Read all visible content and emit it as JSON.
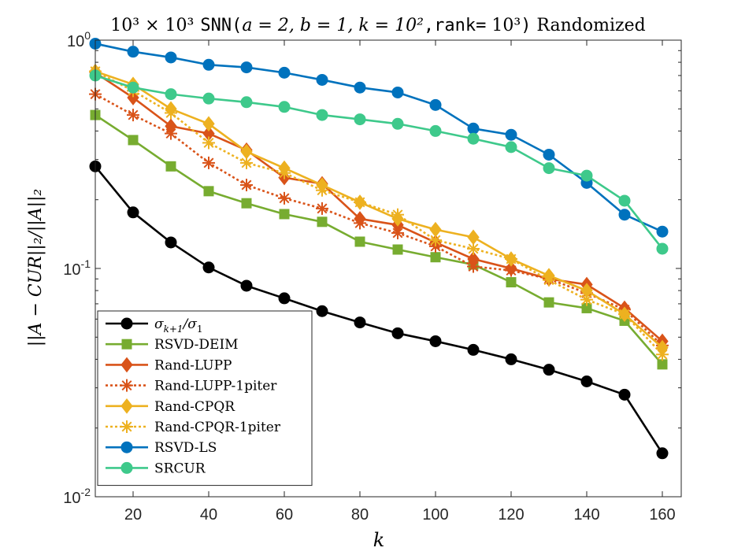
{
  "chart_data": {
    "type": "line",
    "title_parts": {
      "prefix": "10³ × 10³",
      "mono1": "SNN(",
      "math": "a = 2, b = 1, k = 10²",
      "mono2": ",rank=",
      "math2": " 10³",
      "mono3": ")",
      "suffix": " Randomized"
    },
    "xlabel": "k",
    "ylabel": "||A − CUR||₂/||A||₂",
    "x": [
      10,
      20,
      30,
      40,
      50,
      60,
      70,
      80,
      90,
      100,
      110,
      120,
      130,
      140,
      150,
      160
    ],
    "xlim": [
      10,
      165
    ],
    "ylim": [
      0.01,
      1
    ],
    "yscale": "log",
    "xticks": [
      20,
      40,
      60,
      80,
      100,
      120,
      140,
      160
    ],
    "yticks": [
      {
        "value": 1,
        "base": "10",
        "exp": "0"
      },
      {
        "value": 0.1,
        "base": "10",
        "exp": "-1"
      },
      {
        "value": 0.01,
        "base": "10",
        "exp": "-2"
      }
    ],
    "legend_position": "bottom-left",
    "series": [
      {
        "name": "σk+1/σ1",
        "name_main": "σ",
        "name_sub1": "k+1",
        "name_mid": "/σ",
        "name_sub2": "1",
        "color": "#000000",
        "dashed": false,
        "marker": "circle",
        "values": [
          0.28,
          0.176,
          0.13,
          0.101,
          0.084,
          0.074,
          0.065,
          0.058,
          0.052,
          0.048,
          0.044,
          0.04,
          0.036,
          0.032,
          0.028,
          0.0155
        ]
      },
      {
        "name": "RSVD-DEIM",
        "color": "#77AC30",
        "dashed": false,
        "marker": "square",
        "values": [
          0.47,
          0.365,
          0.28,
          0.218,
          0.193,
          0.173,
          0.16,
          0.131,
          0.121,
          0.112,
          0.104,
          0.087,
          0.071,
          0.067,
          0.059,
          0.038
        ]
      },
      {
        "name": "Rand-LUPP",
        "color": "#D95319",
        "dashed": false,
        "marker": "diamond",
        "values": [
          0.72,
          0.56,
          0.42,
          0.39,
          0.33,
          0.25,
          0.235,
          0.165,
          0.155,
          0.13,
          0.11,
          0.1,
          0.09,
          0.085,
          0.067,
          0.048
        ]
      },
      {
        "name": "Rand-LUPP-1piter",
        "color": "#D95319",
        "dashed": true,
        "marker": "asterisk",
        "values": [
          0.58,
          0.47,
          0.39,
          0.29,
          0.232,
          0.203,
          0.183,
          0.158,
          0.143,
          0.125,
          0.102,
          0.098,
          0.09,
          0.078,
          0.066,
          0.046
        ]
      },
      {
        "name": "Rand-CPQR",
        "color": "#EDB120",
        "dashed": false,
        "marker": "diamond",
        "values": [
          0.73,
          0.64,
          0.5,
          0.43,
          0.325,
          0.275,
          0.232,
          0.195,
          0.165,
          0.148,
          0.137,
          0.11,
          0.093,
          0.08,
          0.063,
          0.045
        ]
      },
      {
        "name": "Rand-CPQR-1piter",
        "color": "#EDB120",
        "dashed": true,
        "marker": "asterisk",
        "values": [
          0.73,
          0.6,
          0.48,
          0.355,
          0.29,
          0.262,
          0.22,
          0.195,
          0.172,
          0.133,
          0.122,
          0.11,
          0.089,
          0.073,
          0.063,
          0.042
        ]
      },
      {
        "name": "RSVD-LS",
        "color": "#0072BD",
        "dashed": false,
        "marker": "circle",
        "values": [
          0.965,
          0.89,
          0.84,
          0.78,
          0.76,
          0.72,
          0.67,
          0.62,
          0.59,
          0.52,
          0.41,
          0.385,
          0.315,
          0.237,
          0.172,
          0.145
        ]
      },
      {
        "name": "SRCUR",
        "color": "#3EC98B",
        "dashed": false,
        "marker": "circle",
        "values": [
          0.7,
          0.62,
          0.58,
          0.555,
          0.535,
          0.51,
          0.47,
          0.45,
          0.43,
          0.4,
          0.37,
          0.34,
          0.275,
          0.255,
          0.198,
          0.122
        ]
      }
    ]
  }
}
